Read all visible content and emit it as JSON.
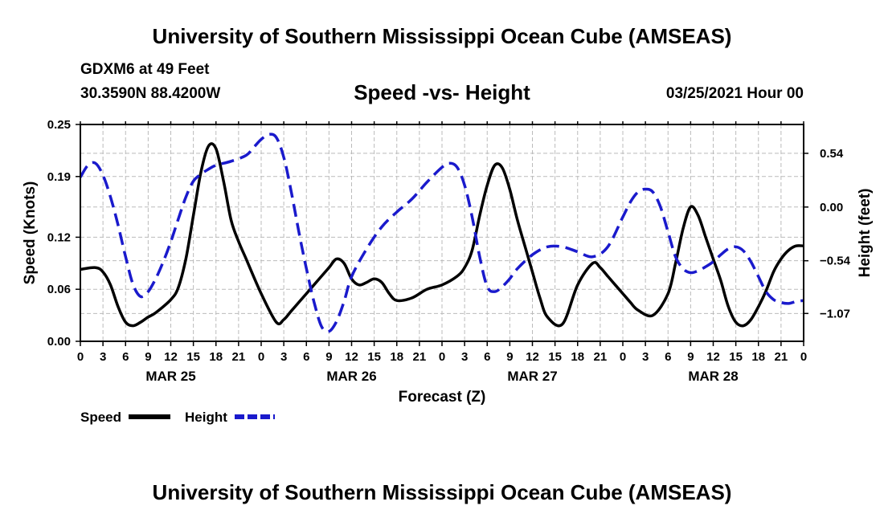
{
  "header": {
    "title": "University of Southern Mississippi Ocean Cube (AMSEAS)",
    "station": "GDXM6 at 49 Feet",
    "coords": "30.3590N  88.4200W",
    "subtitle": "Speed -vs- Height",
    "datetime": "03/25/2021 Hour 00"
  },
  "footer": {
    "title": "University of Southern Mississippi Ocean Cube (AMSEAS)"
  },
  "colors": {
    "speed": "#000000",
    "height": "#1a1acc",
    "grid": "#bbbbbb"
  },
  "chart_data": {
    "type": "line",
    "title": "Speed -vs- Height",
    "xlabel": "Forecast (Z)",
    "ylabel": "Speed (Knots)",
    "y2label": "Height (feet)",
    "xlim": [
      0,
      96
    ],
    "ylim": [
      0,
      0.25
    ],
    "y2lim": [
      -1.35,
      0.83
    ],
    "x_tick_step_hours": 3,
    "x_tick_labels": [
      "0",
      "3",
      "6",
      "9",
      "12",
      "15",
      "18",
      "21",
      "0",
      "3",
      "6",
      "9",
      "12",
      "15",
      "18",
      "21",
      "0",
      "3",
      "6",
      "9",
      "12",
      "15",
      "18",
      "21",
      "0",
      "3",
      "6",
      "9",
      "12",
      "15",
      "18",
      "21",
      "0"
    ],
    "y_ticks": [
      0.0,
      0.06,
      0.12,
      0.19,
      0.25
    ],
    "y_tick_labels": [
      "0.00",
      "0.06",
      "0.12",
      "0.19",
      "0.25"
    ],
    "y2_ticks": [
      0.54,
      0.0,
      -0.54,
      -1.07
    ],
    "y2_tick_labels": [
      "0.54",
      "0.00",
      "−0.54",
      "−1.07"
    ],
    "date_labels": [
      {
        "label": "MAR 25",
        "hour": 12
      },
      {
        "label": "MAR 26",
        "hour": 36
      },
      {
        "label": "MAR 27",
        "hour": 60
      },
      {
        "label": "MAR 28",
        "hour": 84
      }
    ],
    "legend": [
      "Speed",
      "Height"
    ],
    "series": [
      {
        "name": "Speed",
        "axis": "left",
        "style": "solid",
        "x": [
          0,
          2,
          3,
          4,
          5,
          6,
          7,
          8,
          9,
          10,
          12,
          13,
          14,
          15,
          16,
          17,
          18,
          19,
          20,
          21,
          22,
          24,
          26,
          27,
          28,
          30,
          32,
          33,
          34,
          35,
          36,
          37,
          38,
          39,
          40,
          41,
          42,
          44,
          46,
          48,
          50,
          51,
          52,
          53,
          54,
          55,
          56,
          57,
          58,
          59,
          60,
          61,
          62,
          64,
          66,
          68,
          69,
          70,
          71,
          72,
          73,
          74,
          76,
          78,
          79,
          80,
          81,
          82,
          83,
          84,
          85,
          86,
          87,
          88,
          89,
          90,
          91,
          92,
          93,
          94,
          95,
          96
        ],
        "values": [
          0.083,
          0.085,
          0.08,
          0.065,
          0.04,
          0.022,
          0.018,
          0.022,
          0.028,
          0.033,
          0.048,
          0.062,
          0.095,
          0.145,
          0.195,
          0.225,
          0.222,
          0.185,
          0.14,
          0.115,
          0.095,
          0.055,
          0.022,
          0.025,
          0.035,
          0.055,
          0.075,
          0.085,
          0.095,
          0.09,
          0.072,
          0.065,
          0.068,
          0.072,
          0.068,
          0.055,
          0.047,
          0.05,
          0.06,
          0.065,
          0.075,
          0.085,
          0.105,
          0.145,
          0.18,
          0.203,
          0.2,
          0.175,
          0.14,
          0.11,
          0.08,
          0.05,
          0.028,
          0.02,
          0.065,
          0.09,
          0.085,
          0.075,
          0.065,
          0.055,
          0.045,
          0.036,
          0.03,
          0.055,
          0.09,
          0.13,
          0.155,
          0.145,
          0.12,
          0.095,
          0.07,
          0.04,
          0.022,
          0.018,
          0.025,
          0.04,
          0.058,
          0.08,
          0.095,
          0.105,
          0.11,
          0.11
        ]
      },
      {
        "name": "Height",
        "axis": "right",
        "style": "dashed",
        "x": [
          0,
          1,
          2,
          3,
          4,
          5,
          6,
          7,
          8,
          9,
          10,
          11,
          12,
          13,
          14,
          15,
          16,
          17,
          18,
          20,
          22,
          23,
          24,
          25,
          26,
          27,
          28,
          29,
          30,
          31,
          32,
          33,
          34,
          35,
          36,
          38,
          40,
          42,
          44,
          46,
          48,
          49,
          50,
          51,
          52,
          53,
          54,
          55,
          56,
          57,
          58,
          60,
          62,
          64,
          66,
          68,
          70,
          72,
          73,
          74,
          75,
          76,
          77,
          78,
          79,
          80,
          81,
          82,
          83,
          84,
          85,
          86,
          87,
          88,
          89,
          90,
          91,
          92,
          93,
          94,
          95,
          96
        ],
        "values": [
          0.3,
          0.42,
          0.44,
          0.32,
          0.1,
          -0.18,
          -0.5,
          -0.78,
          -0.9,
          -0.85,
          -0.72,
          -0.55,
          -0.35,
          -0.12,
          0.1,
          0.26,
          0.33,
          0.38,
          0.42,
          0.46,
          0.52,
          0.6,
          0.68,
          0.73,
          0.7,
          0.5,
          0.15,
          -0.25,
          -0.62,
          -0.95,
          -1.2,
          -1.25,
          -1.15,
          -0.95,
          -0.7,
          -0.42,
          -0.2,
          -0.05,
          0.08,
          0.25,
          0.4,
          0.44,
          0.4,
          0.22,
          -0.1,
          -0.5,
          -0.8,
          -0.85,
          -0.8,
          -0.72,
          -0.62,
          -0.48,
          -0.4,
          -0.4,
          -0.45,
          -0.5,
          -0.4,
          -0.1,
          0.05,
          0.15,
          0.18,
          0.15,
          0.0,
          -0.25,
          -0.5,
          -0.62,
          -0.66,
          -0.64,
          -0.6,
          -0.55,
          -0.48,
          -0.42,
          -0.4,
          -0.44,
          -0.55,
          -0.7,
          -0.85,
          -0.93,
          -0.96,
          -0.97,
          -0.95,
          -0.94
        ]
      }
    ]
  }
}
